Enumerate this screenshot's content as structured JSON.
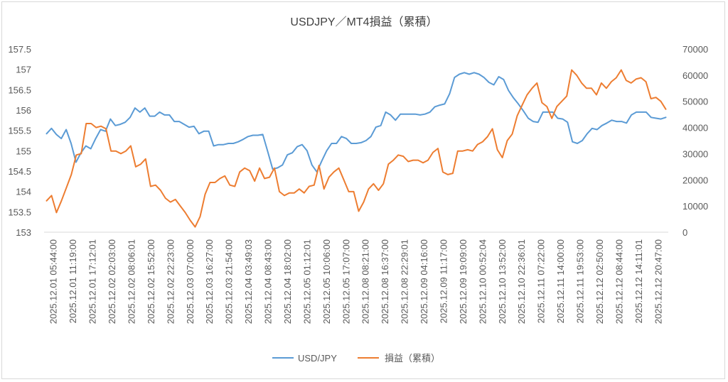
{
  "chart_data": {
    "type": "line",
    "title": "USDJPY／MT4損益（累積）",
    "xlabel": "",
    "ylabel": "",
    "y_left": {
      "min": 153,
      "max": 157.5,
      "ticks": [
        "157.5",
        "157",
        "156.5",
        "156",
        "155.5",
        "155",
        "154.5",
        "154",
        "153.5",
        "153"
      ]
    },
    "y_right": {
      "min": 0,
      "max": 70000,
      "ticks": [
        "70000",
        "60000",
        "50000",
        "40000",
        "30000",
        "20000",
        "10000",
        "0"
      ]
    },
    "grid": false,
    "legend_position": "bottom",
    "x_tick_labels": [
      "2025.12.01 05:44:00",
      "2025.12.01 11:19:00",
      "2025.12.01 17:12:01",
      "2025.12.02 02:03:00",
      "2025.12.02 08:06:01",
      "2025.12.02 15:52:00",
      "2025.12.02 22:23:00",
      "2025.12.03 07:00:00",
      "2025.12.03 16:27:00",
      "2025.12.03 21:54:00",
      "2025.12.04 03:49:03",
      "2025.12.04 08:43:00",
      "2025.12.04 18:02:00",
      "2025.12.05 01:12:01",
      "2025.12.05 10:06:00",
      "2025.12.05 17:07:00",
      "2025.12.08 08:21:00",
      "2025.12.08 16:37:00",
      "2025.12.08 22:29:01",
      "2025.12.09 04:16:00",
      "2025.12.09 11:17:00",
      "2025.12.09 19:09:00",
      "2025.12.10 00:52:04",
      "2025.12.10 13:52:00",
      "2025.12.10 22:36:01",
      "2025.12.11 07:22:00",
      "2025.12.11 14:00:00",
      "2025.12.11 19:53:00",
      "2025.12.12 02:50:00",
      "2025.12.12 08:44:00",
      "2025.12.12 14:11:01",
      "2025.12.12 20:47:00"
    ],
    "series": [
      {
        "name": "USD/JPY",
        "axis": "left",
        "color": "#5b9bd5",
        "values": [
          155.42,
          155.55,
          155.4,
          155.3,
          155.52,
          155.18,
          154.72,
          154.95,
          155.12,
          155.05,
          155.3,
          155.52,
          155.48,
          155.78,
          155.62,
          155.65,
          155.7,
          155.82,
          156.05,
          155.95,
          156.05,
          155.85,
          155.85,
          155.95,
          155.88,
          155.88,
          155.72,
          155.72,
          155.65,
          155.58,
          155.6,
          155.42,
          155.48,
          155.48,
          155.12,
          155.15,
          155.15,
          155.18,
          155.18,
          155.22,
          155.28,
          155.35,
          155.38,
          155.38,
          155.4,
          154.98,
          154.55,
          154.58,
          154.65,
          154.9,
          154.95,
          155.1,
          155.15,
          155.0,
          154.65,
          154.48,
          154.75,
          155.0,
          155.18,
          155.18,
          155.35,
          155.3,
          155.18,
          155.18,
          155.2,
          155.25,
          155.35,
          155.58,
          155.62,
          155.95,
          155.88,
          155.75,
          155.9,
          155.9,
          155.9,
          155.9,
          155.88,
          155.9,
          155.95,
          156.08,
          156.12,
          156.15,
          156.4,
          156.8,
          156.88,
          156.92,
          156.88,
          156.92,
          156.88,
          156.8,
          156.68,
          156.62,
          156.82,
          156.75,
          156.48,
          156.3,
          156.15,
          155.98,
          155.8,
          155.72,
          155.7,
          155.95,
          155.95,
          155.95,
          155.8,
          155.78,
          155.7,
          155.22,
          155.18,
          155.25,
          155.42,
          155.55,
          155.52,
          155.62,
          155.68,
          155.75,
          155.72,
          155.72,
          155.68,
          155.88,
          155.95,
          155.95,
          155.95,
          155.82,
          155.8,
          155.78,
          155.82
        ]
      },
      {
        "name": "損益（累積）",
        "axis": "right",
        "color": "#ed7d31",
        "values": [
          12000,
          14000,
          7500,
          12000,
          17000,
          22000,
          29500,
          30000,
          41500,
          41500,
          40000,
          40500,
          39500,
          31000,
          31000,
          30000,
          31000,
          33000,
          25000,
          26000,
          28000,
          17500,
          18000,
          16000,
          13000,
          11500,
          12500,
          10000,
          7500,
          4500,
          2000,
          6000,
          14500,
          19000,
          19000,
          20500,
          21500,
          18000,
          17500,
          23000,
          24500,
          23500,
          19500,
          24500,
          20500,
          21000,
          24500,
          15500,
          14000,
          15000,
          15000,
          16500,
          15000,
          17500,
          18000,
          25500,
          16500,
          21000,
          23000,
          24500,
          20000,
          15500,
          15500,
          8000,
          11500,
          16500,
          18500,
          16000,
          18500,
          26000,
          27500,
          29500,
          29000,
          27000,
          27500,
          27500,
          26500,
          27500,
          30500,
          32000,
          23000,
          22000,
          22500,
          31000,
          31000,
          31500,
          31000,
          33500,
          34500,
          36500,
          39500,
          31500,
          28500,
          35000,
          37500,
          44500,
          48500,
          52500,
          55000,
          57000,
          49500,
          48000,
          43500,
          48000,
          50000,
          52000,
          62000,
          60000,
          57000,
          55000,
          55000,
          52500,
          57000,
          55000,
          57500,
          59000,
          62000,
          58000,
          57000,
          58500,
          59000,
          57500,
          51000,
          51500,
          50000,
          47000
        ]
      }
    ]
  }
}
